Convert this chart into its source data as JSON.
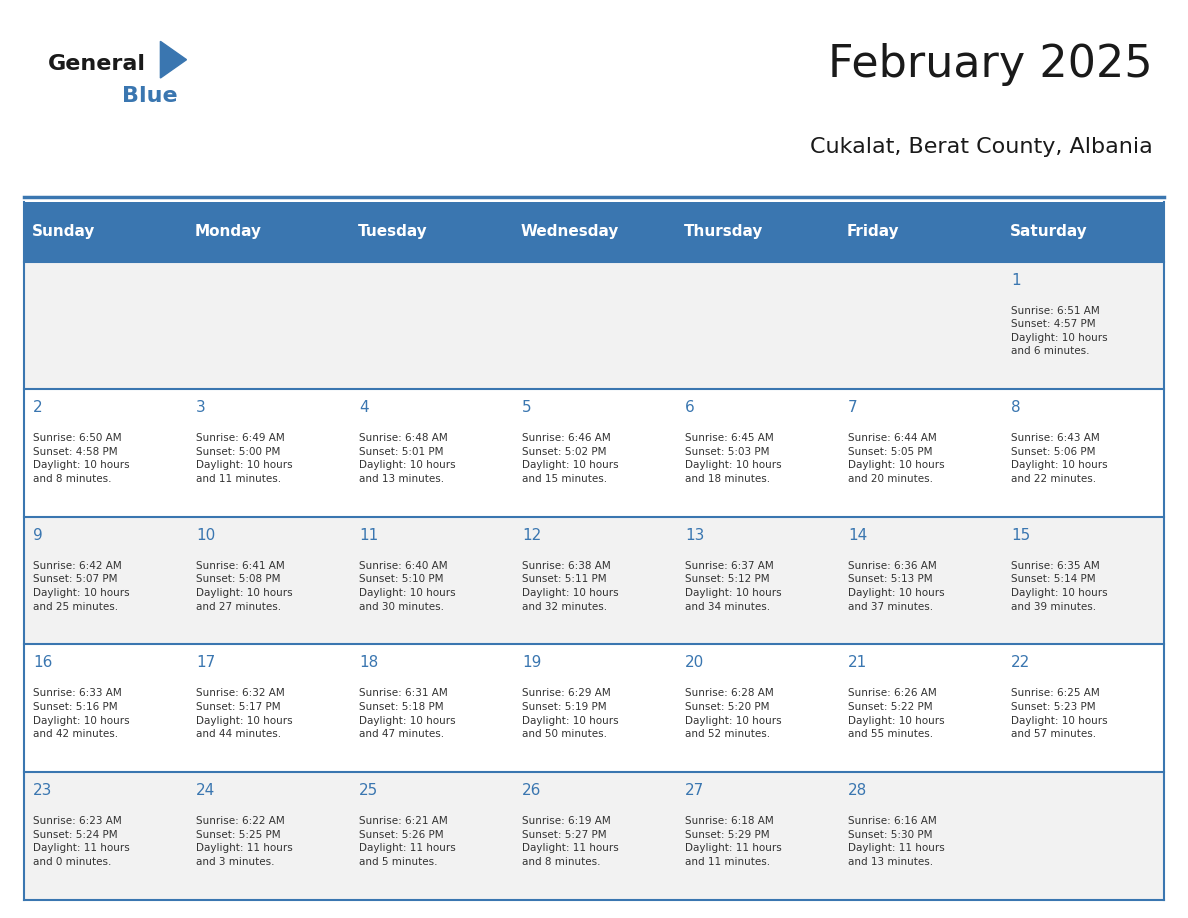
{
  "title": "February 2025",
  "subtitle": "Cukalat, Berat County, Albania",
  "days_of_week": [
    "Sunday",
    "Monday",
    "Tuesday",
    "Wednesday",
    "Thursday",
    "Friday",
    "Saturday"
  ],
  "header_bg": "#3a76b0",
  "header_text": "#ffffff",
  "row_bg_odd": "#f2f2f2",
  "row_bg_even": "#ffffff",
  "cell_border": "#3a76b0",
  "day_number_color": "#3a76b0",
  "text_color": "#333333",
  "title_color": "#1a1a1a",
  "logo_general_color": "#1a1a1a",
  "logo_blue_color": "#3a76b0",
  "calendar_data": [
    [
      {
        "day": null,
        "info": null
      },
      {
        "day": null,
        "info": null
      },
      {
        "day": null,
        "info": null
      },
      {
        "day": null,
        "info": null
      },
      {
        "day": null,
        "info": null
      },
      {
        "day": null,
        "info": null
      },
      {
        "day": 1,
        "info": "Sunrise: 6:51 AM\nSunset: 4:57 PM\nDaylight: 10 hours\nand 6 minutes."
      }
    ],
    [
      {
        "day": 2,
        "info": "Sunrise: 6:50 AM\nSunset: 4:58 PM\nDaylight: 10 hours\nand 8 minutes."
      },
      {
        "day": 3,
        "info": "Sunrise: 6:49 AM\nSunset: 5:00 PM\nDaylight: 10 hours\nand 11 minutes."
      },
      {
        "day": 4,
        "info": "Sunrise: 6:48 AM\nSunset: 5:01 PM\nDaylight: 10 hours\nand 13 minutes."
      },
      {
        "day": 5,
        "info": "Sunrise: 6:46 AM\nSunset: 5:02 PM\nDaylight: 10 hours\nand 15 minutes."
      },
      {
        "day": 6,
        "info": "Sunrise: 6:45 AM\nSunset: 5:03 PM\nDaylight: 10 hours\nand 18 minutes."
      },
      {
        "day": 7,
        "info": "Sunrise: 6:44 AM\nSunset: 5:05 PM\nDaylight: 10 hours\nand 20 minutes."
      },
      {
        "day": 8,
        "info": "Sunrise: 6:43 AM\nSunset: 5:06 PM\nDaylight: 10 hours\nand 22 minutes."
      }
    ],
    [
      {
        "day": 9,
        "info": "Sunrise: 6:42 AM\nSunset: 5:07 PM\nDaylight: 10 hours\nand 25 minutes."
      },
      {
        "day": 10,
        "info": "Sunrise: 6:41 AM\nSunset: 5:08 PM\nDaylight: 10 hours\nand 27 minutes."
      },
      {
        "day": 11,
        "info": "Sunrise: 6:40 AM\nSunset: 5:10 PM\nDaylight: 10 hours\nand 30 minutes."
      },
      {
        "day": 12,
        "info": "Sunrise: 6:38 AM\nSunset: 5:11 PM\nDaylight: 10 hours\nand 32 minutes."
      },
      {
        "day": 13,
        "info": "Sunrise: 6:37 AM\nSunset: 5:12 PM\nDaylight: 10 hours\nand 34 minutes."
      },
      {
        "day": 14,
        "info": "Sunrise: 6:36 AM\nSunset: 5:13 PM\nDaylight: 10 hours\nand 37 minutes."
      },
      {
        "day": 15,
        "info": "Sunrise: 6:35 AM\nSunset: 5:14 PM\nDaylight: 10 hours\nand 39 minutes."
      }
    ],
    [
      {
        "day": 16,
        "info": "Sunrise: 6:33 AM\nSunset: 5:16 PM\nDaylight: 10 hours\nand 42 minutes."
      },
      {
        "day": 17,
        "info": "Sunrise: 6:32 AM\nSunset: 5:17 PM\nDaylight: 10 hours\nand 44 minutes."
      },
      {
        "day": 18,
        "info": "Sunrise: 6:31 AM\nSunset: 5:18 PM\nDaylight: 10 hours\nand 47 minutes."
      },
      {
        "day": 19,
        "info": "Sunrise: 6:29 AM\nSunset: 5:19 PM\nDaylight: 10 hours\nand 50 minutes."
      },
      {
        "day": 20,
        "info": "Sunrise: 6:28 AM\nSunset: 5:20 PM\nDaylight: 10 hours\nand 52 minutes."
      },
      {
        "day": 21,
        "info": "Sunrise: 6:26 AM\nSunset: 5:22 PM\nDaylight: 10 hours\nand 55 minutes."
      },
      {
        "day": 22,
        "info": "Sunrise: 6:25 AM\nSunset: 5:23 PM\nDaylight: 10 hours\nand 57 minutes."
      }
    ],
    [
      {
        "day": 23,
        "info": "Sunrise: 6:23 AM\nSunset: 5:24 PM\nDaylight: 11 hours\nand 0 minutes."
      },
      {
        "day": 24,
        "info": "Sunrise: 6:22 AM\nSunset: 5:25 PM\nDaylight: 11 hours\nand 3 minutes."
      },
      {
        "day": 25,
        "info": "Sunrise: 6:21 AM\nSunset: 5:26 PM\nDaylight: 11 hours\nand 5 minutes."
      },
      {
        "day": 26,
        "info": "Sunrise: 6:19 AM\nSunset: 5:27 PM\nDaylight: 11 hours\nand 8 minutes."
      },
      {
        "day": 27,
        "info": "Sunrise: 6:18 AM\nSunset: 5:29 PM\nDaylight: 11 hours\nand 11 minutes."
      },
      {
        "day": 28,
        "info": "Sunrise: 6:16 AM\nSunset: 5:30 PM\nDaylight: 11 hours\nand 13 minutes."
      },
      {
        "day": null,
        "info": null
      }
    ]
  ],
  "num_rows": 5,
  "num_cols": 7,
  "fig_width": 11.88,
  "fig_height": 9.18
}
